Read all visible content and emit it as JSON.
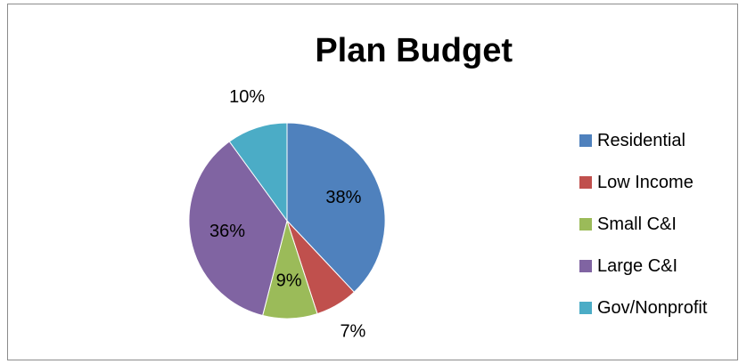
{
  "chart_data": {
    "type": "pie",
    "title": "Plan Budget",
    "legend_position": "right",
    "slices": [
      {
        "label": "Residential",
        "value": 38,
        "display": "38%",
        "color": "#4f81bd"
      },
      {
        "label": "Low Income",
        "value": 7,
        "display": "7%",
        "color": "#c0504d"
      },
      {
        "label": "Small C&I",
        "value": 9,
        "display": "9%",
        "color": "#9bbb59"
      },
      {
        "label": "Large C&I",
        "value": 36,
        "display": "36%",
        "color": "#8064a2"
      },
      {
        "label": "Gov/Nonprofit",
        "value": 10,
        "display": "10%",
        "color": "#4bacc6"
      }
    ]
  }
}
